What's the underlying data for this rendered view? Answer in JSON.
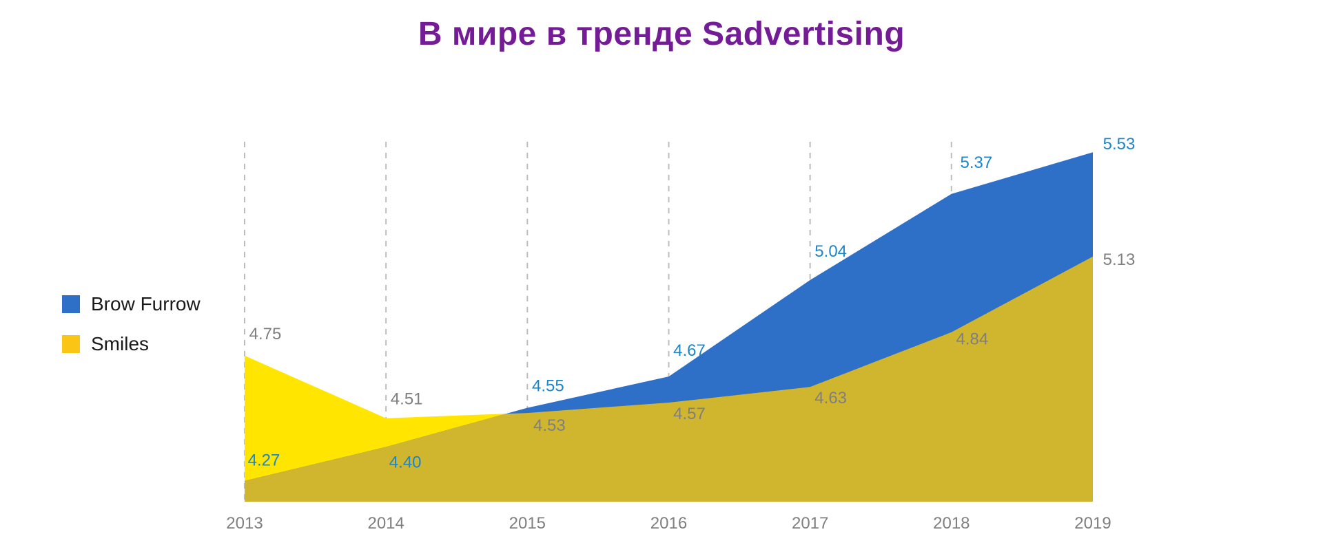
{
  "chart_data": {
    "type": "area",
    "title": "В мире в тренде Sadvertising",
    "title_color": "#741B96",
    "categories": [
      "2013",
      "2014",
      "2015",
      "2016",
      "2017",
      "2018",
      "2019"
    ],
    "series": [
      {
        "name": "Brow Furrow",
        "values": [
          4.27,
          4.4,
          4.55,
          4.67,
          5.04,
          5.37,
          5.53
        ],
        "color": "#2E6FC7",
        "area_color": "#2E6FC7",
        "label_color": "#1C86C8"
      },
      {
        "name": "Smiles",
        "values": [
          4.75,
          4.51,
          4.53,
          4.57,
          4.63,
          4.84,
          5.13
        ],
        "color": "#FAC514",
        "area_color": "#FFE500",
        "label_color": "#7F7F7F"
      }
    ],
    "overlap_color": "#D0B52F",
    "gridline_color": "#BDBDBD",
    "gridline_years": [
      "2013",
      "2014",
      "2015",
      "2016",
      "2017",
      "2018"
    ],
    "axis_label_color": "#808080",
    "ylim": [
      4.19,
      5.57
    ],
    "grid": "vertical-dashed",
    "legend_position": "left",
    "xlabel": "",
    "ylabel": ""
  }
}
